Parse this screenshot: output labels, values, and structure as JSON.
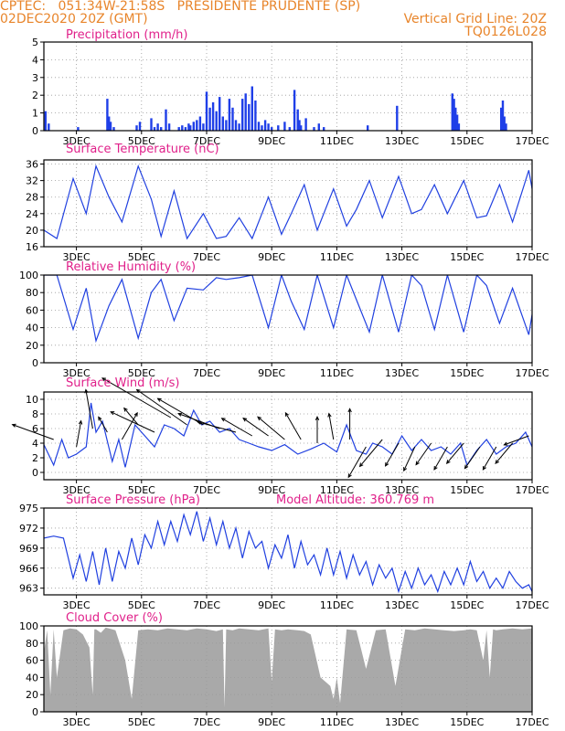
{
  "header": {
    "line1": "CPTEC:   051:34W-21:58S   PRESIDENTE PRUDENTE (SP)",
    "line2_left": "02DEC2020 20Z (GMT)",
    "line2_right": "Vertical Grid Line: 20Z",
    "line3_right": "TQ0126L028"
  },
  "colors": {
    "header": "#e8852b",
    "panel_title": "#e0208a",
    "line": "#2040e0",
    "bar": "#1f3fe8",
    "cloud": "#a9a9a9",
    "axis": "#000000",
    "grid": "#9a9a9a",
    "arrow": "#000000"
  },
  "extras": {
    "model_altitude": "Model Altitude: 360.769 m"
  },
  "x_axis": {
    "start_day": 2.0,
    "end_day": 17.0,
    "ticks": [
      {
        "day": 3,
        "label": "3DEC"
      },
      {
        "day": 5,
        "label": "5DEC"
      },
      {
        "day": 7,
        "label": "7DEC"
      },
      {
        "day": 9,
        "label": "9DEC"
      },
      {
        "day": 11,
        "label": "11DEC"
      },
      {
        "day": 13,
        "label": "13DEC"
      },
      {
        "day": 15,
        "label": "15DEC"
      },
      {
        "day": 17,
        "label": "17DEC"
      }
    ]
  },
  "chart_data": [
    {
      "id": "precip",
      "type": "bar",
      "title": "Precipitation (mm/h)",
      "ylim": [
        0,
        5
      ],
      "yticks": [
        0,
        1,
        2,
        3,
        4,
        5
      ],
      "x": [
        2.05,
        2.15,
        3.05,
        3.95,
        4.0,
        4.05,
        4.15,
        4.85,
        4.95,
        5.3,
        5.4,
        5.5,
        5.6,
        5.75,
        5.85,
        6.15,
        6.25,
        6.35,
        6.45,
        6.5,
        6.6,
        6.7,
        6.8,
        6.9,
        7.0,
        7.1,
        7.2,
        7.3,
        7.4,
        7.5,
        7.6,
        7.7,
        7.8,
        7.9,
        8.0,
        8.1,
        8.2,
        8.3,
        8.4,
        8.5,
        8.6,
        8.7,
        8.8,
        8.9,
        9.0,
        9.2,
        9.4,
        9.55,
        9.7,
        9.8,
        9.85,
        9.9,
        10.05,
        10.3,
        10.45,
        10.6,
        11.95,
        12.85,
        14.55,
        14.6,
        14.65,
        14.7,
        14.75,
        16.05,
        16.1,
        16.15,
        16.2
      ],
      "y": [
        1.1,
        0.4,
        0.2,
        1.8,
        0.8,
        0.5,
        0.2,
        0.3,
        0.5,
        0.7,
        0.2,
        0.4,
        0.2,
        1.2,
        0.4,
        0.2,
        0.3,
        0.2,
        0.4,
        0.3,
        0.5,
        0.6,
        0.8,
        0.4,
        2.2,
        1.3,
        1.6,
        1.1,
        1.9,
        0.8,
        0.6,
        1.8,
        1.3,
        0.6,
        0.4,
        1.8,
        2.1,
        1.5,
        2.5,
        1.7,
        0.5,
        0.3,
        0.6,
        0.4,
        0.2,
        0.3,
        0.5,
        0.2,
        2.3,
        1.2,
        0.6,
        0.3,
        0.7,
        0.2,
        0.4,
        0.2,
        0.3,
        1.4,
        2.1,
        1.8,
        1.3,
        0.9,
        0.4,
        1.3,
        1.7,
        0.8,
        0.4
      ]
    },
    {
      "id": "temp",
      "type": "line",
      "title": "Surface Temperature (nC)",
      "ylim": [
        16,
        37
      ],
      "yticks": [
        16,
        20,
        24,
        28,
        32,
        36
      ],
      "x": [
        2.0,
        2.4,
        2.9,
        3.3,
        3.6,
        4.0,
        4.4,
        4.9,
        5.3,
        5.6,
        6.0,
        6.4,
        6.9,
        7.3,
        7.6,
        8.0,
        8.4,
        8.9,
        9.3,
        9.6,
        10.0,
        10.4,
        10.9,
        11.3,
        11.6,
        12.0,
        12.4,
        12.9,
        13.3,
        13.6,
        14.0,
        14.4,
        14.9,
        15.3,
        15.6,
        16.0,
        16.4,
        16.9,
        17.0
      ],
      "y": [
        20,
        18,
        32.5,
        24,
        35.5,
        28,
        22,
        35.5,
        27.5,
        18.5,
        29.5,
        18,
        24,
        18,
        18.5,
        23,
        18,
        28,
        19,
        24,
        31,
        20,
        30,
        21,
        25,
        32,
        23,
        33,
        24,
        25,
        31,
        24,
        32,
        23,
        23.5,
        31,
        22,
        34.5,
        30
      ]
    },
    {
      "id": "rh",
      "type": "line",
      "title": "Relative Humidity (%)",
      "ylim": [
        0,
        100
      ],
      "yticks": [
        0,
        20,
        40,
        60,
        80,
        100
      ],
      "x": [
        2.0,
        2.4,
        2.9,
        3.3,
        3.6,
        4.0,
        4.4,
        4.9,
        5.3,
        5.6,
        6.0,
        6.4,
        6.9,
        7.3,
        7.6,
        8.0,
        8.4,
        8.9,
        9.3,
        9.6,
        10.0,
        10.4,
        10.9,
        11.3,
        11.6,
        12.0,
        12.4,
        12.9,
        13.3,
        13.6,
        14.0,
        14.4,
        14.9,
        15.3,
        15.6,
        16.0,
        16.4,
        16.9,
        17.0
      ],
      "y": [
        100,
        100,
        38,
        85,
        25,
        65,
        95,
        28,
        80,
        95,
        48,
        85,
        83,
        97,
        95,
        97,
        100,
        40,
        100,
        70,
        38,
        100,
        40,
        100,
        72,
        35,
        100,
        35,
        100,
        88,
        38,
        100,
        35,
        100,
        88,
        45,
        85,
        32,
        55
      ]
    },
    {
      "id": "wind",
      "type": "line",
      "title": "Surface Wind (m/s)",
      "ylim": [
        -1,
        11
      ],
      "yticks": [
        0,
        2,
        4,
        6,
        8,
        10
      ],
      "x": [
        2.0,
        2.3,
        2.55,
        2.75,
        3.0,
        3.3,
        3.45,
        3.6,
        3.8,
        4.1,
        4.3,
        4.5,
        4.8,
        5.1,
        5.4,
        5.7,
        6.0,
        6.3,
        6.6,
        6.85,
        7.1,
        7.4,
        7.7,
        8.0,
        8.3,
        8.6,
        9.0,
        9.4,
        9.8,
        10.2,
        10.6,
        11.0,
        11.3,
        11.6,
        11.9,
        12.1,
        12.4,
        12.7,
        13.0,
        13.3,
        13.6,
        13.9,
        14.2,
        14.5,
        14.8,
        15.0,
        15.3,
        15.6,
        15.9,
        16.2,
        16.5,
        16.8,
        17.0
      ],
      "y": [
        3.8,
        1.0,
        4.5,
        2.0,
        2.5,
        3.5,
        9.5,
        5.5,
        7.0,
        1.5,
        4.5,
        0.7,
        6.5,
        5.0,
        3.5,
        6.5,
        6.0,
        5.0,
        8.5,
        6.5,
        7.0,
        5.5,
        6.0,
        4.5,
        4.0,
        3.5,
        3.0,
        3.8,
        2.5,
        3.2,
        4.0,
        2.8,
        6.5,
        3.0,
        2.5,
        4.0,
        3.5,
        2.5,
        5.0,
        3.0,
        4.5,
        3.0,
        3.5,
        2.5,
        4.0,
        1.0,
        3.0,
        4.5,
        2.5,
        3.5,
        4.0,
        5.5,
        3.5
      ]
    },
    {
      "id": "pres",
      "type": "line",
      "title": "Surface Pressure (hPa)",
      "ylim": [
        962,
        975
      ],
      "yticks": [
        963,
        966,
        969,
        972,
        975
      ],
      "x": [
        2.0,
        2.3,
        2.6,
        2.9,
        3.1,
        3.3,
        3.5,
        3.7,
        3.9,
        4.1,
        4.3,
        4.5,
        4.7,
        4.9,
        5.1,
        5.3,
        5.5,
        5.7,
        5.9,
        6.1,
        6.3,
        6.5,
        6.7,
        6.9,
        7.1,
        7.3,
        7.5,
        7.7,
        7.9,
        8.1,
        8.3,
        8.5,
        8.7,
        8.9,
        9.1,
        9.3,
        9.5,
        9.7,
        9.9,
        10.1,
        10.3,
        10.5,
        10.7,
        10.9,
        11.1,
        11.3,
        11.5,
        11.7,
        11.9,
        12.1,
        12.3,
        12.5,
        12.7,
        12.9,
        13.1,
        13.3,
        13.5,
        13.7,
        13.9,
        14.1,
        14.3,
        14.5,
        14.7,
        14.9,
        15.1,
        15.3,
        15.5,
        15.7,
        15.9,
        16.1,
        16.3,
        16.5,
        16.7,
        16.9,
        17.0
      ],
      "y": [
        970.5,
        970.8,
        970.5,
        964.5,
        968.0,
        964.0,
        968.5,
        963.5,
        969.0,
        964.0,
        968.5,
        966.0,
        970.5,
        966.5,
        971.0,
        969.0,
        973.0,
        969.5,
        973.0,
        970.0,
        974.0,
        971.0,
        974.5,
        970.0,
        973.5,
        969.5,
        973.0,
        969.0,
        972.0,
        967.5,
        971.5,
        969.0,
        970.0,
        966.0,
        969.5,
        967.5,
        971.0,
        966.0,
        970.0,
        966.5,
        968.0,
        965.0,
        969.0,
        965.0,
        968.5,
        964.5,
        968.0,
        965.0,
        967.0,
        963.5,
        966.5,
        964.5,
        966.0,
        962.5,
        965.5,
        963.0,
        966.0,
        963.5,
        965.0,
        962.5,
        965.5,
        963.5,
        966.0,
        963.5,
        967.0,
        964.0,
        965.5,
        963.0,
        964.5,
        963.0,
        965.5,
        964.0,
        963.0,
        963.5,
        962.5
      ]
    },
    {
      "id": "cloud",
      "type": "area",
      "title": "Cloud Cover (%)",
      "ylim": [
        0,
        100
      ],
      "yticks": [
        0,
        20,
        40,
        60,
        80,
        100
      ],
      "x": [
        2.0,
        2.1,
        2.2,
        2.3,
        2.4,
        2.6,
        2.8,
        3.0,
        3.2,
        3.4,
        3.5,
        3.55,
        3.6,
        3.75,
        3.9,
        4.0,
        4.2,
        4.5,
        4.7,
        4.9,
        5.2,
        5.5,
        5.8,
        6.1,
        6.4,
        6.7,
        7.0,
        7.3,
        7.5,
        7.55,
        7.6,
        7.8,
        8.0,
        8.3,
        8.6,
        8.9,
        9.0,
        9.1,
        9.3,
        9.5,
        9.8,
        10.0,
        10.2,
        10.5,
        10.8,
        10.9,
        11.0,
        11.1,
        11.3,
        11.6,
        11.9,
        12.2,
        12.5,
        12.8,
        13.1,
        13.4,
        13.7,
        14.0,
        14.3,
        14.6,
        14.9,
        15.1,
        15.3,
        15.5,
        15.6,
        15.7,
        15.8,
        15.9,
        16.1,
        16.4,
        16.7,
        17.0
      ],
      "y": [
        70,
        95,
        20,
        96,
        40,
        95,
        97,
        96,
        90,
        75,
        20,
        96,
        96,
        92,
        98,
        97,
        95,
        60,
        15,
        95,
        96,
        95,
        97,
        96,
        95,
        97,
        96,
        94,
        96,
        5,
        96,
        95,
        97,
        96,
        95,
        97,
        35,
        96,
        95,
        96,
        95,
        94,
        90,
        40,
        30,
        15,
        40,
        10,
        96,
        95,
        50,
        95,
        96,
        30,
        96,
        95,
        97,
        96,
        95,
        94,
        95,
        96,
        95,
        60,
        95,
        40,
        96,
        95,
        96,
        97,
        96,
        97
      ]
    }
  ],
  "wind_arrows": {
    "x": [
      2.3,
      3.0,
      3.5,
      3.95,
      4.4,
      4.9,
      5.4,
      5.9,
      6.4,
      6.9,
      7.4,
      7.9,
      8.4,
      8.9,
      9.4,
      9.9,
      10.4,
      10.9,
      11.4,
      11.9,
      12.4,
      12.9,
      13.4,
      13.9,
      14.4,
      14.9,
      15.4,
      15.9,
      16.4,
      16.9
    ],
    "y": [
      4.5,
      3.5,
      6.0,
      5.5,
      4.5,
      6.5,
      5.5,
      7.5,
      6.5,
      6.5,
      6.0,
      5.5,
      5.0,
      5.0,
      4.5,
      4.5,
      4.0,
      4.5,
      4.5,
      3.5,
      4.5,
      4.0,
      3.5,
      4.0,
      3.5,
      4.0,
      3.5,
      3.5,
      4.0,
      5.0
    ],
    "angle_deg": [
      160,
      80,
      100,
      120,
      60,
      130,
      155,
      150,
      145,
      150,
      160,
      165,
      150,
      145,
      140,
      120,
      90,
      100,
      90,
      240,
      230,
      240,
      245,
      235,
      240,
      230,
      235,
      240,
      230,
      200
    ],
    "length": [
      1.0,
      0.6,
      0.9,
      0.4,
      0.7,
      0.5,
      1.1,
      1.8,
      1.4,
      1.2,
      1.0,
      0.9,
      0.8,
      0.7,
      0.8,
      0.7,
      0.6,
      0.6,
      0.7,
      0.8,
      0.8,
      0.6,
      0.6,
      0.6,
      0.6,
      0.6,
      0.6,
      0.6,
      0.6,
      0.6
    ]
  }
}
